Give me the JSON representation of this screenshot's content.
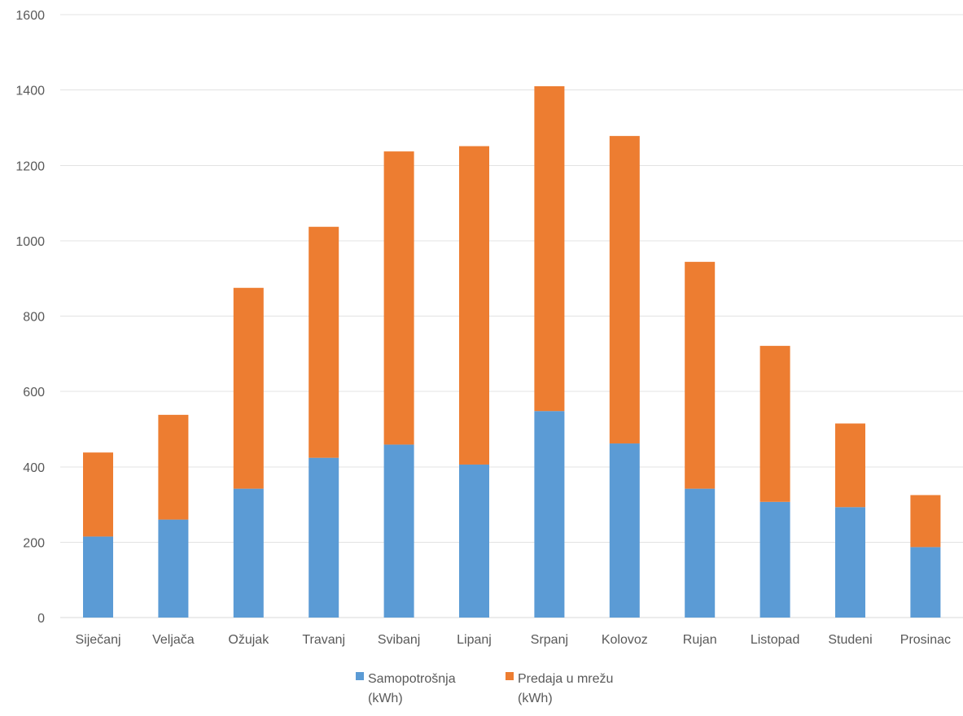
{
  "chart_data": {
    "type": "bar",
    "stacked": true,
    "title": "",
    "xlabel": "",
    "ylabel": "",
    "ylim": [
      0,
      1600
    ],
    "yticks": [
      0,
      200,
      400,
      600,
      800,
      1000,
      1200,
      1400,
      1600
    ],
    "grid": "horizontal",
    "legend_position": "bottom",
    "categories": [
      "Siječanj",
      "Veljača",
      "Ožujak",
      "Travanj",
      "Svibanj",
      "Lipanj",
      "Srpanj",
      "Kolovoz",
      "Rujan",
      "Listopad",
      "Studeni",
      "Prosinac"
    ],
    "series": [
      {
        "name": "Samopotrošnja (kWh)",
        "legend_lines": [
          "Samopotrošnja",
          "(kWh)"
        ],
        "color": "#5B9BD5",
        "values": [
          215,
          260,
          342,
          424,
          459,
          406,
          548,
          462,
          342,
          307,
          293,
          187
        ]
      },
      {
        "name": "Predaja u mrežu (kWh)",
        "legend_lines": [
          "Predaja u mrežu",
          "(kWh)"
        ],
        "color": "#ED7D31",
        "values": [
          223,
          278,
          533,
          613,
          778,
          845,
          862,
          816,
          602,
          414,
          222,
          138
        ]
      }
    ]
  }
}
